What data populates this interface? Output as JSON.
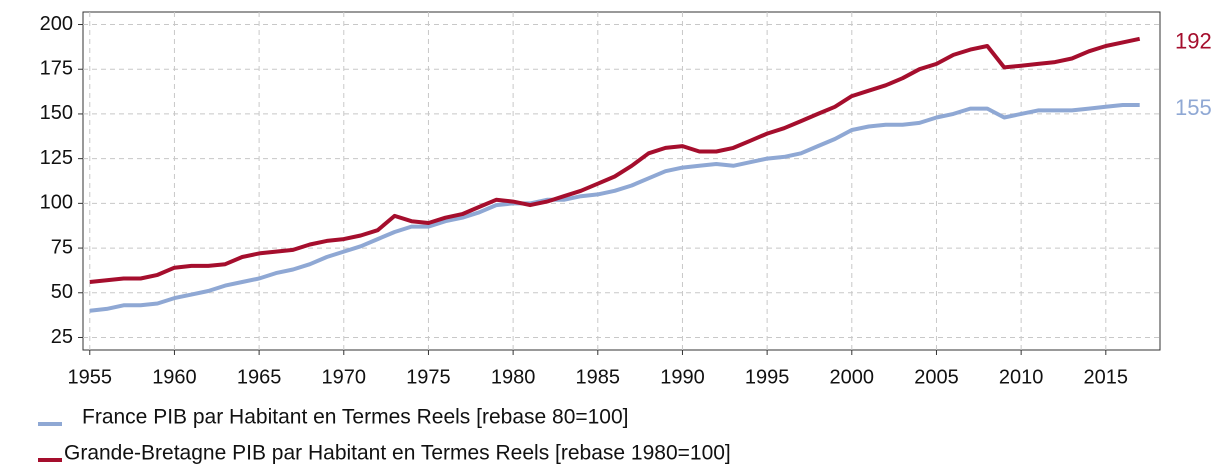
{
  "chart_data": {
    "type": "line",
    "x": [
      1955,
      1956,
      1957,
      1958,
      1959,
      1960,
      1961,
      1962,
      1963,
      1964,
      1965,
      1966,
      1967,
      1968,
      1969,
      1970,
      1971,
      1972,
      1973,
      1974,
      1975,
      1976,
      1977,
      1978,
      1979,
      1980,
      1981,
      1982,
      1983,
      1984,
      1985,
      1986,
      1987,
      1988,
      1989,
      1990,
      1991,
      1992,
      1993,
      1994,
      1995,
      1996,
      1997,
      1998,
      1999,
      2000,
      2001,
      2002,
      2003,
      2004,
      2005,
      2006,
      2007,
      2008,
      2009,
      2010,
      2011,
      2012,
      2013,
      2014,
      2015,
      2016,
      2017
    ],
    "series": [
      {
        "name": "France PIB par Habitant en Termes Reels [rebase 80=100]",
        "color": "#8fa8d4",
        "values": [
          40,
          41,
          43,
          43,
          44,
          47,
          49,
          51,
          54,
          56,
          58,
          61,
          63,
          66,
          70,
          73,
          76,
          80,
          84,
          87,
          87,
          90,
          92,
          95,
          99,
          100,
          100,
          102,
          102,
          104,
          105,
          107,
          110,
          114,
          118,
          120,
          121,
          122,
          121,
          123,
          125,
          126,
          128,
          132,
          136,
          141,
          143,
          144,
          144,
          145,
          148,
          150,
          153,
          153,
          148,
          150,
          152,
          152,
          152,
          153,
          154,
          155,
          155
        ]
      },
      {
        "name": "Grande-Bretagne PIB par Habitant en Termes Reels [rebase 1980=100]",
        "color": "#a50e2d",
        "values": [
          56,
          57,
          58,
          58,
          60,
          64,
          65,
          65,
          66,
          70,
          72,
          73,
          74,
          77,
          79,
          80,
          82,
          85,
          93,
          90,
          89,
          92,
          94,
          98,
          102,
          101,
          99,
          101,
          104,
          107,
          111,
          115,
          121,
          128,
          131,
          132,
          129,
          129,
          131,
          135,
          139,
          142,
          146,
          150,
          154,
          160,
          163,
          166,
          170,
          175,
          178,
          183,
          186,
          188,
          176,
          177,
          178,
          179,
          181,
          185,
          188,
          190,
          192
        ]
      }
    ],
    "xlim": [
      1954.6,
      2018.2
    ],
    "xticks": [
      1955,
      1960,
      1965,
      1970,
      1975,
      1980,
      1985,
      1990,
      1995,
      2000,
      2005,
      2010,
      2015
    ],
    "ylim": [
      18,
      207
    ],
    "yticks": [
      25,
      50,
      75,
      100,
      125,
      150,
      175,
      200
    ],
    "grid": true,
    "legend": "bottom"
  }
}
